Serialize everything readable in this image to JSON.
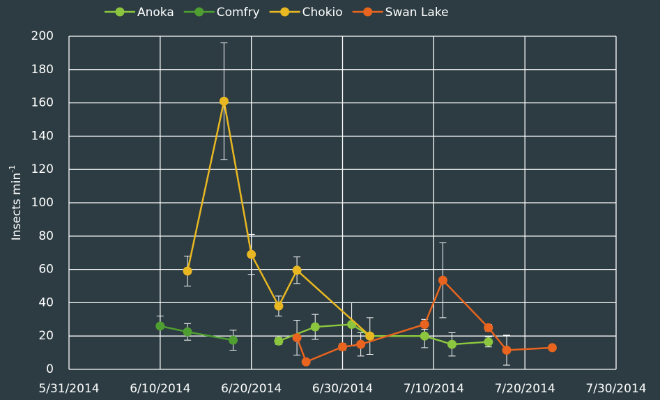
{
  "chart_data": {
    "type": "line",
    "ylabel": "Insects min",
    "ylabel_sup": "-1",
    "xlim": [
      "2014-05-31",
      "2014-07-30"
    ],
    "xticks": [
      {
        "value": "2014-05-31",
        "label": "5/31/2014"
      },
      {
        "value": "2014-06-10",
        "label": "6/10/2014"
      },
      {
        "value": "2014-06-20",
        "label": "6/20/2014"
      },
      {
        "value": "2014-06-30",
        "label": "6/30/2014"
      },
      {
        "value": "2014-07-10",
        "label": "7/10/2014"
      },
      {
        "value": "2014-07-20",
        "label": "7/20/2014"
      },
      {
        "value": "2014-07-30",
        "label": "7/30/2014"
      }
    ],
    "ylim": [
      0,
      200
    ],
    "yticks": [
      0,
      20,
      40,
      60,
      80,
      100,
      120,
      140,
      160,
      180,
      200
    ],
    "grid": true,
    "legend": "top",
    "series": [
      {
        "name": "Anoka",
        "color": "#8cc63e",
        "x": [
          "2014-06-23",
          "2014-06-27",
          "2014-07-01",
          "2014-07-03",
          "2014-07-09",
          "2014-07-12",
          "2014-07-16"
        ],
        "values": [
          17,
          25.5,
          27,
          20,
          20,
          15,
          16.5
        ],
        "errors": [
          2,
          7.5,
          13,
          0,
          7,
          7,
          3
        ]
      },
      {
        "name": "Comfry",
        "color": "#4f9e32",
        "x": [
          "2014-06-10",
          "2014-06-13",
          "2014-06-18"
        ],
        "values": [
          26,
          22.5,
          17.5
        ],
        "errors": [
          6,
          5,
          6
        ]
      },
      {
        "name": "Chokio",
        "color": "#e9b722",
        "x": [
          "2014-06-13",
          "2014-06-17",
          "2014-06-20",
          "2014-06-23",
          "2014-06-25",
          "2014-07-03"
        ],
        "values": [
          59,
          161,
          69,
          38,
          59.5,
          20
        ],
        "errors": [
          9,
          35,
          12,
          6,
          8,
          11
        ]
      },
      {
        "name": "Swan Lake",
        "color": "#e8641f",
        "x": [
          "2014-06-25",
          "2014-06-26",
          "2014-06-30",
          "2014-07-02",
          "2014-07-09",
          "2014-07-11",
          "2014-07-16",
          "2014-07-18",
          "2014-07-23"
        ],
        "values": [
          19,
          4.5,
          13.5,
          15,
          27,
          53.5,
          25,
          11.5,
          13
        ],
        "errors": [
          10.5,
          0,
          2,
          7,
          3,
          22.5,
          2,
          9,
          0
        ]
      }
    ]
  }
}
